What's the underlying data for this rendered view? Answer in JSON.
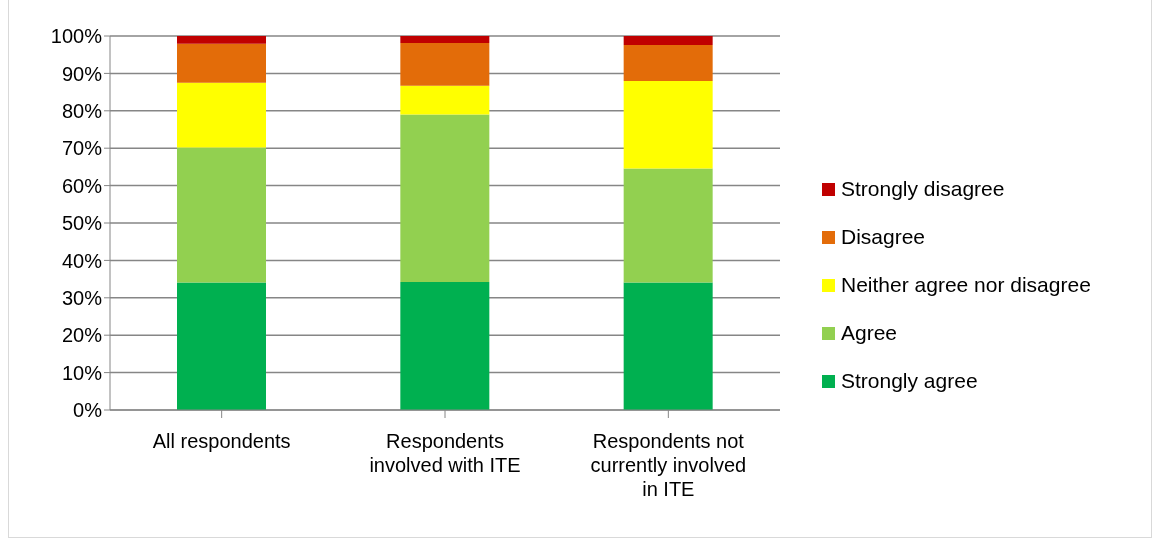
{
  "chart_data": {
    "type": "bar",
    "stacked": true,
    "categories": [
      "All respondents",
      "Respondents involved with ITE",
      "Respondents not currently involved in ITE"
    ],
    "series": [
      {
        "name": "Strongly agree",
        "color": "#00b050",
        "values": [
          34.1,
          34.2,
          34.1
        ]
      },
      {
        "name": "Agree",
        "color": "#92d050",
        "values": [
          36.1,
          44.8,
          30.5
        ]
      },
      {
        "name": "Neither agree nor disagree",
        "color": "#ffff00",
        "values": [
          17.3,
          7.7,
          23.4
        ]
      },
      {
        "name": "Disagree",
        "color": "#e36c09",
        "values": [
          10.4,
          11.4,
          9.6
        ]
      },
      {
        "name": "Strongly disagree",
        "color": "#c00000",
        "values": [
          2.1,
          1.9,
          2.4
        ]
      }
    ],
    "ylim": [
      0,
      100
    ],
    "yticks": [
      {
        "value": 0,
        "label": "0%"
      },
      {
        "value": 10,
        "label": "10%"
      },
      {
        "value": 20,
        "label": "20%"
      },
      {
        "value": 30,
        "label": "30%"
      },
      {
        "value": 40,
        "label": "40%"
      },
      {
        "value": 50,
        "label": "50%"
      },
      {
        "value": 60,
        "label": "60%"
      },
      {
        "value": 70,
        "label": "70%"
      },
      {
        "value": 80,
        "label": "80%"
      },
      {
        "value": 90,
        "label": "90%"
      },
      {
        "value": 100,
        "label": "100%"
      }
    ],
    "grid": "y",
    "legend": "right"
  }
}
